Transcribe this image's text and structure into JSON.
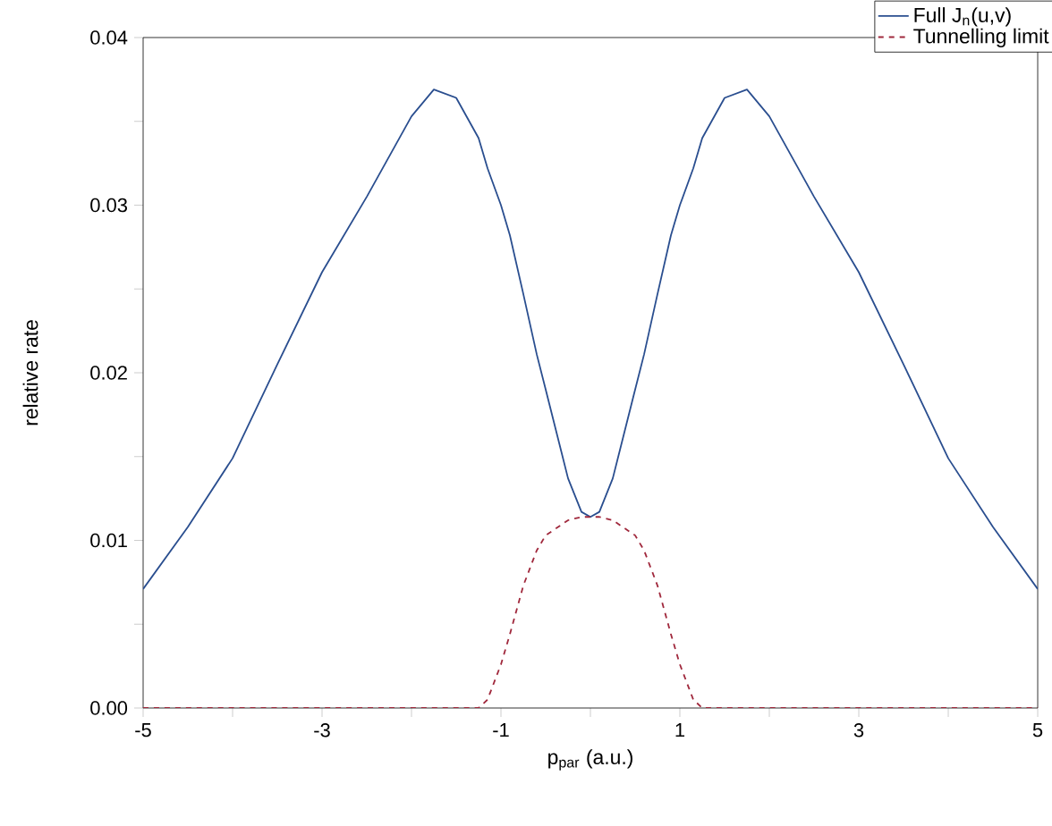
{
  "chart_data": {
    "type": "line",
    "xlabel": "p$_{par}$ (a.u.)",
    "ylabel": "relative rate",
    "x": [
      -5,
      -4.5,
      -4,
      -3.5,
      -3,
      -2.5,
      -2,
      -1.75,
      -1.5,
      -1.25,
      -1.15,
      -1,
      -0.9,
      -0.75,
      -0.6,
      -0.5,
      -0.25,
      -0.1,
      0,
      0.1,
      0.25,
      0.5,
      0.6,
      0.75,
      0.9,
      1,
      1.15,
      1.25,
      1.5,
      1.75,
      2,
      2.5,
      3,
      3.5,
      4,
      4.5,
      5
    ],
    "series": [
      {
        "name": "Full J$_{n}$(u,v)",
        "color": "#2a4e8f",
        "line_style": "solid",
        "values": [
          0.0071,
          0.0108,
          0.0149,
          0.0205,
          0.026,
          0.0305,
          0.0353,
          0.0369,
          0.0364,
          0.034,
          0.0322,
          0.03,
          0.0282,
          0.0247,
          0.0211,
          0.019,
          0.0137,
          0.0117,
          0.0114,
          0.0117,
          0.0137,
          0.019,
          0.0211,
          0.0247,
          0.0282,
          0.03,
          0.0322,
          0.034,
          0.0364,
          0.0369,
          0.0353,
          0.0305,
          0.026,
          0.0205,
          0.0149,
          0.0108,
          0.0071
        ]
      },
      {
        "name": "Tunnelling limit",
        "color": "#a0283c",
        "line_style": "dashed",
        "values": [
          0,
          0,
          0,
          0,
          0,
          0,
          0,
          0,
          0,
          0,
          0.0005,
          0.0026,
          0.0044,
          0.0073,
          0.0094,
          0.0103,
          0.0112,
          0.0114,
          0.0114,
          0.0114,
          0.0112,
          0.0103,
          0.0094,
          0.0073,
          0.0044,
          0.0026,
          0.0005,
          0,
          0,
          0,
          0,
          0,
          0,
          0,
          0,
          0,
          0
        ]
      }
    ],
    "xlim": [
      -5,
      5
    ],
    "xticks": [
      -5,
      {
        "value": -4,
        "label": null
      },
      -3,
      {
        "value": -2,
        "label": null
      },
      -1,
      {
        "value": 0,
        "label": null
      },
      1,
      {
        "value": 2,
        "label": null
      },
      3,
      {
        "value": 4,
        "label": null
      },
      5
    ],
    "ylim": [
      0,
      0.04
    ],
    "yticks": [
      {
        "value": 0,
        "label": "0.00"
      },
      {
        "value": 0.005,
        "label": null
      },
      {
        "value": 0.01,
        "label": "0.01"
      },
      {
        "value": 0.015,
        "label": null
      },
      {
        "value": 0.02,
        "label": "0.02"
      },
      {
        "value": 0.025,
        "label": null
      },
      {
        "value": 0.03,
        "label": "0.03"
      },
      {
        "value": 0.035,
        "label": null
      },
      {
        "value": 0.04,
        "label": "0.04"
      }
    ],
    "legend": "top right",
    "grid": false,
    "marker": "none"
  }
}
